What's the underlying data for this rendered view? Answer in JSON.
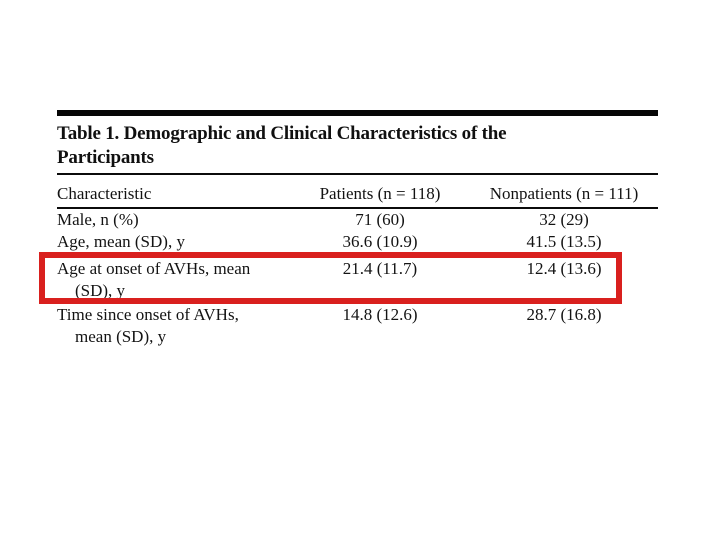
{
  "table": {
    "title_line1": "Table 1. Demographic and Clinical Characteristics of the",
    "title_line2": "Participants",
    "columns": [
      "Characteristic",
      "Patients (n = 118)",
      "Nonpatients (n = 111)"
    ],
    "rows": [
      {
        "label": "Male, n (%)",
        "label_line2": "",
        "patients": "71 (60)",
        "nonpatients": "32 (29)"
      },
      {
        "label": "Age, mean (SD), y",
        "label_line2": "",
        "patients": "36.6 (10.9)",
        "nonpatients": "41.5 (13.5)"
      },
      {
        "label": "Age at onset of AVHs, mean",
        "label_line2": "(SD), y",
        "patients": "21.4 (11.7)",
        "nonpatients": "12.4 (13.6)",
        "highlighted": true
      },
      {
        "label": "Time since onset of AVHs,",
        "label_line2": "mean (SD), y",
        "patients": "14.8 (12.6)",
        "nonpatients": "28.7 (16.8)"
      }
    ],
    "highlight_color": "#d9201e"
  }
}
